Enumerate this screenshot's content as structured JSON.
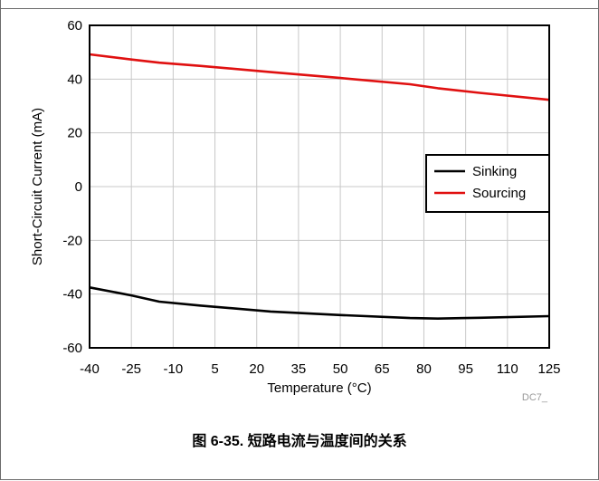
{
  "chart_data": {
    "type": "line",
    "xlabel": "Temperature (°C)",
    "ylabel": "Short-Circuit Current (mA)",
    "xlim": [
      -40,
      125
    ],
    "ylim": [
      -60,
      60
    ],
    "x_ticks": [
      -40,
      -25,
      -10,
      5,
      20,
      35,
      50,
      65,
      80,
      95,
      110,
      125
    ],
    "y_ticks": [
      60,
      40,
      20,
      0,
      -20,
      -40,
      -60
    ],
    "grid": true,
    "legend_position": "right",
    "series": [
      {
        "name": "Sinking",
        "color": "#000000",
        "x": [
          -40,
          -25,
          -15,
          0,
          25,
          50,
          75,
          85,
          100,
          125
        ],
        "y": [
          -37.5,
          -40.5,
          -42.8,
          -44.3,
          -46.5,
          -47.8,
          -48.9,
          -49.1,
          -48.8,
          -48.2
        ]
      },
      {
        "name": "Sourcing",
        "color": "#e01010",
        "x": [
          -40,
          -25,
          -15,
          0,
          25,
          50,
          75,
          85,
          100,
          125
        ],
        "y": [
          49.2,
          47.3,
          46.1,
          44.9,
          42.6,
          40.4,
          38.1,
          36.6,
          34.9,
          32.3
        ]
      }
    ]
  },
  "figure_id": "DC7_",
  "caption": "图 6-35. 短路电流与温度间的关系"
}
